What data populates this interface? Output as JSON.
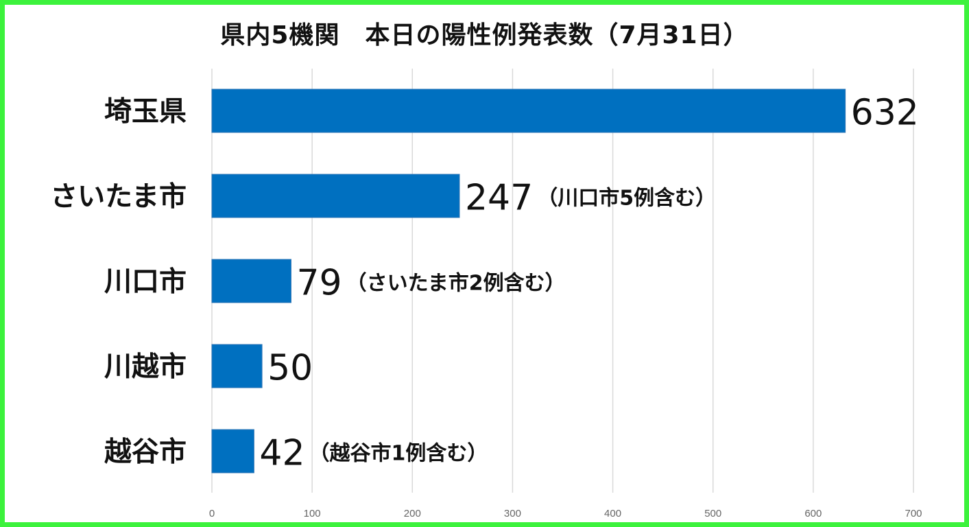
{
  "chart_data": {
    "type": "bar",
    "orientation": "horizontal",
    "title": "県内5機関　本日の陽性例発表数（7月31日）",
    "categories": [
      "埼玉県",
      "さいたま市",
      "川口市",
      "川越市",
      "越谷市"
    ],
    "values": [
      632,
      247,
      79,
      50,
      42
    ],
    "annotations": [
      "",
      "（川口市5例含む）",
      "（さいたま市2例含む）",
      "",
      "（越谷市1例含む）"
    ],
    "xlim": [
      0,
      700
    ],
    "xticks": [
      0,
      100,
      200,
      300,
      400,
      500,
      600,
      700
    ],
    "grid": true,
    "legend": "none",
    "colors": {
      "bar": "#0070c0",
      "bar_edge": "#2e75b6",
      "border": "#3cf23c",
      "grid": "#d9d9d9"
    }
  }
}
